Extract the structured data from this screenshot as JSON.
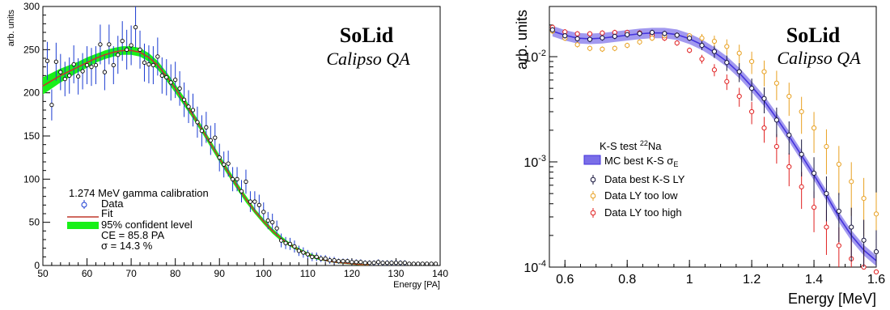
{
  "chart_data": [
    {
      "type": "scatter",
      "brand": "SoLid",
      "subtitle": "Calipso QA",
      "xlabel": "Energy [PA]",
      "ylabel": "arb. units",
      "xlim": [
        50,
        140
      ],
      "ylim": [
        0,
        300
      ],
      "x_ticks": [
        "50",
        "60",
        "70",
        "80",
        "90",
        "100",
        "110",
        "120",
        "130",
        "140"
      ],
      "y_ticks": [
        "0",
        "50",
        "100",
        "150",
        "200",
        "250",
        "300"
      ],
      "legend": {
        "header": "1.274 MeV gamma calibration",
        "entries": [
          "Data",
          "Fit",
          "95% confident level"
        ],
        "ce_text": "CE = 85.8 PA",
        "sigma_text": "σ = 14.3 %"
      },
      "colors": {
        "data": "#1a3bd1",
        "fit": "#c0392b",
        "band": "#18f018"
      },
      "series": [
        {
          "name": "Data",
          "x": [
            51,
            52,
            53,
            54,
            55,
            56,
            57,
            58,
            59,
            60,
            61,
            62,
            63,
            64,
            65,
            66,
            67,
            68,
            69,
            70,
            71,
            72,
            73,
            74,
            75,
            76,
            77,
            78,
            79,
            80,
            81,
            82,
            83,
            84,
            85,
            86,
            87,
            88,
            89,
            90,
            91,
            92,
            93,
            94,
            95,
            96,
            97,
            98,
            99,
            100,
            101,
            102,
            103,
            104,
            105,
            106,
            107,
            108,
            109,
            110,
            111,
            112,
            113,
            114,
            115,
            116,
            117,
            118,
            119,
            120,
            121,
            122,
            123,
            124,
            125,
            126,
            127,
            128,
            129,
            130,
            131,
            132,
            133,
            134,
            135,
            136,
            137,
            138,
            139
          ],
          "y": [
            237,
            186,
            236,
            224,
            216,
            220,
            233,
            219,
            225,
            232,
            230,
            232,
            256,
            224,
            256,
            232,
            244,
            260,
            250,
            255,
            276,
            250,
            235,
            233,
            232,
            242,
            220,
            218,
            212,
            215,
            205,
            192,
            184,
            180,
            166,
            156,
            160,
            145,
            148,
            125,
            117,
            118,
            100,
            100,
            86,
            97,
            74,
            74,
            70,
            62,
            52,
            50,
            43,
            29,
            26,
            25,
            22,
            17,
            15,
            13,
            10,
            10,
            8,
            8,
            6,
            6,
            5,
            5,
            5,
            4,
            4,
            4,
            3,
            3,
            3,
            4,
            3,
            3,
            3,
            3,
            3,
            3,
            2,
            2,
            2,
            2,
            2,
            2,
            2
          ],
          "err": [
            22,
            18,
            22,
            21,
            20,
            21,
            22,
            21,
            21,
            22,
            22,
            22,
            23,
            21,
            23,
            22,
            22,
            23,
            23,
            23,
            24,
            22,
            22,
            22,
            22,
            22,
            21,
            21,
            21,
            21,
            20,
            20,
            19,
            19,
            18,
            18,
            18,
            17,
            17,
            16,
            15,
            15,
            14,
            14,
            13,
            14,
            12,
            12,
            12,
            11,
            10,
            10,
            9,
            8,
            7,
            7,
            7,
            6,
            6,
            5,
            5,
            5,
            4,
            4,
            4,
            4,
            3,
            3,
            3,
            3,
            3,
            3,
            3,
            3,
            3,
            3,
            3,
            3,
            3,
            3,
            3,
            3,
            2,
            2,
            2,
            2,
            2,
            2,
            2
          ]
        },
        {
          "name": "Fit",
          "x": [
            50,
            52,
            54,
            56,
            58,
            60,
            62,
            64,
            66,
            68,
            70,
            72,
            74,
            76,
            78,
            80,
            82,
            84,
            86,
            88,
            90,
            92,
            94,
            96,
            98,
            100,
            102,
            104,
            106,
            108,
            110,
            112,
            114,
            116,
            118,
            120,
            122,
            124
          ],
          "y": [
            208,
            214,
            220,
            225,
            230,
            235,
            240,
            244,
            247,
            249,
            249,
            247,
            241,
            232,
            219,
            205,
            190,
            174,
            158,
            141,
            124,
            108,
            92,
            77,
            63,
            51,
            40,
            31,
            24,
            18,
            13,
            9,
            6,
            4,
            3,
            2,
            1,
            1
          ]
        }
      ],
      "band_half_width": [
        10,
        9,
        8,
        7,
        6,
        6,
        5,
        5,
        5,
        5,
        5,
        5,
        5,
        5,
        5,
        5,
        5,
        4,
        4,
        4,
        4,
        4,
        4,
        4,
        3,
        3,
        3,
        3,
        2,
        2,
        2,
        2,
        1,
        1,
        1,
        1,
        1,
        1
      ]
    },
    {
      "type": "scatter",
      "brand": "SoLid",
      "subtitle": "Calipso QA",
      "xlabel": "Energy [MeV]",
      "ylabel": "arb. units",
      "xlim": [
        0.55,
        1.6
      ],
      "ylim": [
        0.0001,
        0.03
      ],
      "log_y": true,
      "x_ticks": [
        "0.6",
        "0.8",
        "1",
        "1.2",
        "1.4",
        "1.6"
      ],
      "legend": {
        "header_pre": "K-S test ",
        "header_sup": "22",
        "header_post": "Na",
        "mc_pre": "MC best K-S σ",
        "mc_sub": "E",
        "entries": [
          "Data best K-S LY",
          "Data LY too low",
          "Data LY too high"
        ]
      },
      "colors": {
        "mc": "#4433dd",
        "best": "#14123a",
        "low": "#e8a020",
        "high": "#e02020"
      },
      "series": [
        {
          "name": "MC best K-S σE",
          "x": [
            0.56,
            0.6,
            0.64,
            0.68,
            0.72,
            0.76,
            0.8,
            0.84,
            0.88,
            0.92,
            0.96,
            1.0,
            1.04,
            1.08,
            1.12,
            1.16,
            1.2,
            1.24,
            1.28,
            1.32,
            1.36,
            1.4,
            1.44,
            1.48,
            1.52,
            1.56,
            1.6
          ],
          "y": [
            0.0175,
            0.016,
            0.015,
            0.0148,
            0.015,
            0.0155,
            0.016,
            0.0165,
            0.0168,
            0.0168,
            0.0162,
            0.0148,
            0.013,
            0.011,
            0.009,
            0.007,
            0.0052,
            0.0038,
            0.0026,
            0.00175,
            0.00115,
            0.00075,
            0.00048,
            0.0003,
            0.0002,
            0.000145,
            0.000115
          ]
        },
        {
          "name": "Data best K-S LY",
          "x": [
            0.56,
            0.6,
            0.64,
            0.68,
            0.72,
            0.76,
            0.8,
            0.84,
            0.88,
            0.92,
            0.96,
            1.0,
            1.04,
            1.08,
            1.12,
            1.16,
            1.2,
            1.24,
            1.28,
            1.32,
            1.36,
            1.4,
            1.44,
            1.48,
            1.52,
            1.56,
            1.6
          ],
          "y": [
            0.018,
            0.0158,
            0.0148,
            0.0146,
            0.0151,
            0.0156,
            0.0162,
            0.0166,
            0.017,
            0.0166,
            0.016,
            0.015,
            0.0128,
            0.0112,
            0.0088,
            0.0072,
            0.005,
            0.004,
            0.0025,
            0.0018,
            0.00118,
            0.00078,
            0.0005,
            0.00034,
            0.00024,
            0.00018,
            0.00014
          ]
        },
        {
          "name": "Data LY too low",
          "x": [
            0.56,
            0.6,
            0.64,
            0.68,
            0.72,
            0.76,
            0.8,
            0.84,
            0.88,
            0.92,
            0.96,
            1.0,
            1.04,
            1.08,
            1.12,
            1.16,
            1.2,
            1.24,
            1.28,
            1.32,
            1.36,
            1.4,
            1.44,
            1.48,
            1.52,
            1.56,
            1.6
          ],
          "y": [
            0.0175,
            0.015,
            0.013,
            0.012,
            0.0118,
            0.012,
            0.0128,
            0.0138,
            0.015,
            0.0158,
            0.016,
            0.0158,
            0.015,
            0.014,
            0.0125,
            0.0108,
            0.009,
            0.0072,
            0.0056,
            0.0042,
            0.003,
            0.0021,
            0.0014,
            0.00095,
            0.00065,
            0.00045,
            0.00032
          ]
        },
        {
          "name": "Data LY too high",
          "x": [
            0.56,
            0.6,
            0.64,
            0.68,
            0.72,
            0.76,
            0.8,
            0.84,
            0.88,
            0.92,
            0.96,
            1.0,
            1.04,
            1.08,
            1.12,
            1.16,
            1.2,
            1.24,
            1.28,
            1.32,
            1.36,
            1.4,
            1.44,
            1.48,
            1.52,
            1.56,
            1.6
          ],
          "y": [
            0.019,
            0.0172,
            0.0165,
            0.0165,
            0.0168,
            0.017,
            0.017,
            0.0168,
            0.016,
            0.015,
            0.0135,
            0.0115,
            0.0095,
            0.0075,
            0.0058,
            0.0042,
            0.003,
            0.0021,
            0.0014,
            0.0009,
            0.00058,
            0.00037,
            0.00024,
            0.00016,
            0.00012,
            0.0001,
            9e-05
          ]
        }
      ]
    }
  ]
}
